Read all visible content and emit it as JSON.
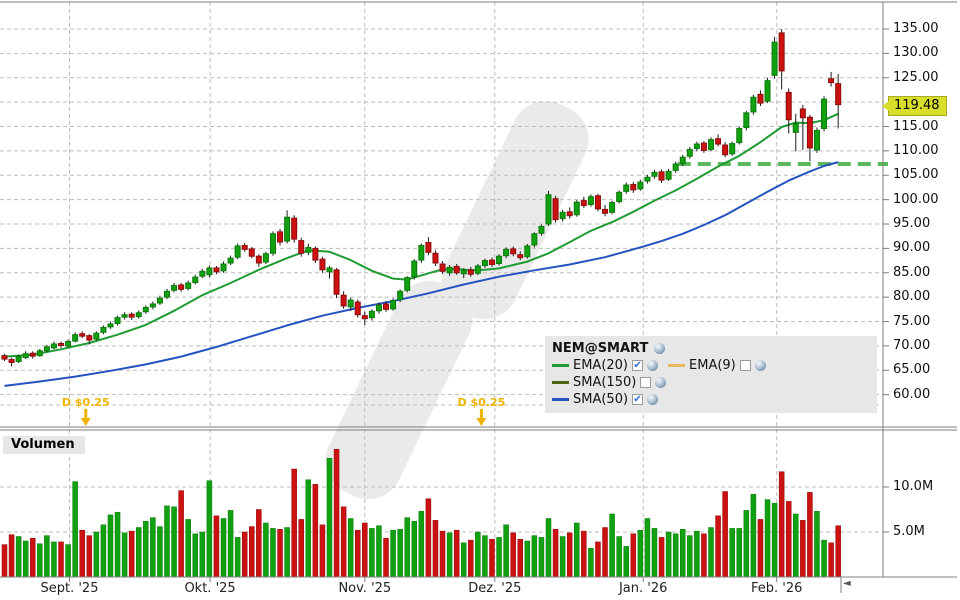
{
  "chart": {
    "symbol": "NEM@SMART",
    "current_price": "119.48",
    "volume_panel_title": "Volumen",
    "legend": {
      "symbol": "NEM@SMART",
      "items": [
        {
          "label": "EMA(20)",
          "color": "#1e9b32",
          "checked": true
        },
        {
          "label": "EMA(9)",
          "color": "#e6b95e",
          "checked": false
        },
        {
          "label": "SMA(150)",
          "color": "#47660e",
          "checked": false
        },
        {
          "label": "SMA(50)",
          "color": "#2553c0",
          "checked": true
        }
      ]
    }
  },
  "colors": {
    "up": "#10a010",
    "up_stroke": "#0a7a0a",
    "down": "#cc1111",
    "down_stroke": "#8e0c0c",
    "wick": "#1a1a1a",
    "grid": "#bdbdbd",
    "border": "#7f7f7f",
    "ema20": "#1e9b32",
    "sma50": "#2553c0",
    "support": "#5cb85c",
    "dividend": "#efb400",
    "watermark": "#eaeaea",
    "tag_bg": "#d8dc2b"
  },
  "chart_data": {
    "type": "candlestick",
    "symbol": "NEM@SMART",
    "title": "NEM@SMART Tageschart mit Volumen",
    "last_price": 119.48,
    "price_axis": {
      "min": 60,
      "max": 135,
      "tick_step": 5,
      "ticks": [
        {
          "value": 135,
          "label": "135.00"
        },
        {
          "value": 130,
          "label": "130.00"
        },
        {
          "value": 125,
          "label": "125.00"
        },
        {
          "value": 115,
          "label": "115.00"
        },
        {
          "value": 110,
          "label": "110.00"
        },
        {
          "value": 105,
          "label": "105.00"
        },
        {
          "value": 100,
          "label": "100.00"
        },
        {
          "value": 95,
          "label": "95.00"
        },
        {
          "value": 90,
          "label": "90.00"
        },
        {
          "value": 85,
          "label": "85.00"
        },
        {
          "value": 80,
          "label": "80.00"
        },
        {
          "value": 75,
          "label": "75.00"
        },
        {
          "value": 70,
          "label": "70.00"
        },
        {
          "value": 65,
          "label": "65.00"
        },
        {
          "value": 60,
          "label": "60.00"
        }
      ],
      "current_price_tag": {
        "value": 119.48,
        "label": "119.48"
      }
    },
    "volume_axis": {
      "ticks": [
        {
          "value": 10,
          "label": "10.0M"
        },
        {
          "value": 5,
          "label": "5.0M"
        }
      ]
    },
    "x_axis": {
      "months": [
        {
          "label": "Sept. '25",
          "i": 9.2
        },
        {
          "label": "Okt. '25",
          "i": 29.1
        },
        {
          "label": "Nov. '25",
          "i": 51.0
        },
        {
          "label": "Dez. '25",
          "i": 69.4
        },
        {
          "label": "Jan. '26",
          "i": 90.4
        },
        {
          "label": "Feb. '26",
          "i": 109.3
        }
      ]
    },
    "dividends": [
      {
        "label": "D $0.25",
        "i": 11.5
      },
      {
        "label": "D $0.25",
        "i": 67.5
      }
    ],
    "candles": [
      [
        68.0,
        68.4,
        66.9,
        67.3
      ],
      [
        67.2,
        67.6,
        65.8,
        66.6
      ],
      [
        66.8,
        68.2,
        66.5,
        67.8
      ],
      [
        67.6,
        68.9,
        67.3,
        68.4
      ],
      [
        68.5,
        68.9,
        67.4,
        67.9
      ],
      [
        68.0,
        69.4,
        67.8,
        69.0
      ],
      [
        69.0,
        70.2,
        68.7,
        69.8
      ],
      [
        69.6,
        70.9,
        69.3,
        70.4
      ],
      [
        70.5,
        70.9,
        69.6,
        70.1
      ],
      [
        70.0,
        71.3,
        69.7,
        70.9
      ],
      [
        71.0,
        72.8,
        70.7,
        72.3
      ],
      [
        72.5,
        73.0,
        71.6,
        72.0
      ],
      [
        72.1,
        72.4,
        70.3,
        71.2
      ],
      [
        71.4,
        73.0,
        71.1,
        72.6
      ],
      [
        72.8,
        74.2,
        72.4,
        73.8
      ],
      [
        73.9,
        75.0,
        73.5,
        74.5
      ],
      [
        74.6,
        76.2,
        74.2,
        75.8
      ],
      [
        75.9,
        76.9,
        75.4,
        76.4
      ],
      [
        76.5,
        76.9,
        75.3,
        75.9
      ],
      [
        76.0,
        77.3,
        75.6,
        76.8
      ],
      [
        77.0,
        78.3,
        76.6,
        77.9
      ],
      [
        78.0,
        79.1,
        77.5,
        78.6
      ],
      [
        78.8,
        80.3,
        78.4,
        79.8
      ],
      [
        80.0,
        81.7,
        79.6,
        81.2
      ],
      [
        81.4,
        82.9,
        81.0,
        82.4
      ],
      [
        82.5,
        82.9,
        81.1,
        81.6
      ],
      [
        81.8,
        83.4,
        81.4,
        82.9
      ],
      [
        83.0,
        84.6,
        82.6,
        84.1
      ],
      [
        84.3,
        85.8,
        83.9,
        85.3
      ],
      [
        84.6,
        86.5,
        84.1,
        86.0
      ],
      [
        86.0,
        86.4,
        84.7,
        85.2
      ],
      [
        85.4,
        87.3,
        85.0,
        86.8
      ],
      [
        87.0,
        88.5,
        86.6,
        88.0
      ],
      [
        88.2,
        91.0,
        87.8,
        90.5
      ],
      [
        90.6,
        91.1,
        89.3,
        89.8
      ],
      [
        89.9,
        90.3,
        88.0,
        88.4
      ],
      [
        88.4,
        88.8,
        86.2,
        87.0
      ],
      [
        87.2,
        89.3,
        86.8,
        88.9
      ],
      [
        89.0,
        93.5,
        88.5,
        93.0
      ],
      [
        93.4,
        94.0,
        90.6,
        91.3
      ],
      [
        91.5,
        97.8,
        91.0,
        96.4
      ],
      [
        96.2,
        96.8,
        91.2,
        91.9
      ],
      [
        91.6,
        92.2,
        88.3,
        89.0
      ],
      [
        89.2,
        91.0,
        88.6,
        90.2
      ],
      [
        90.0,
        90.4,
        87.0,
        87.6
      ],
      [
        87.8,
        88.3,
        85.0,
        85.6
      ],
      [
        85.2,
        86.4,
        83.8,
        86.0
      ],
      [
        85.6,
        86.0,
        79.8,
        80.6
      ],
      [
        80.4,
        81.2,
        77.6,
        78.2
      ],
      [
        78.0,
        79.9,
        77.2,
        79.4
      ],
      [
        79.0,
        79.5,
        75.8,
        76.4
      ],
      [
        76.2,
        77.0,
        74.3,
        75.6
      ],
      [
        75.8,
        77.5,
        75.2,
        77.1
      ],
      [
        77.2,
        78.9,
        76.6,
        78.4
      ],
      [
        78.6,
        79.2,
        77.0,
        77.5
      ],
      [
        77.6,
        79.8,
        77.2,
        79.3
      ],
      [
        79.5,
        81.6,
        79.0,
        81.2
      ],
      [
        81.4,
        84.3,
        81.0,
        84.0
      ],
      [
        84.2,
        87.8,
        83.6,
        87.4
      ],
      [
        87.6,
        91.0,
        87.0,
        90.6
      ],
      [
        91.2,
        92.3,
        88.6,
        89.2
      ],
      [
        89.0,
        89.6,
        86.4,
        87.0
      ],
      [
        86.8,
        87.4,
        84.8,
        85.3
      ],
      [
        85.0,
        86.6,
        84.4,
        86.1
      ],
      [
        86.3,
        86.8,
        84.6,
        85.0
      ],
      [
        84.8,
        85.9,
        83.9,
        85.5
      ],
      [
        85.6,
        86.2,
        84.2,
        84.7
      ],
      [
        84.9,
        86.8,
        84.5,
        86.4
      ],
      [
        86.5,
        87.9,
        86.0,
        87.5
      ],
      [
        87.6,
        88.1,
        86.2,
        86.7
      ],
      [
        86.9,
        88.8,
        86.5,
        88.4
      ],
      [
        88.5,
        90.2,
        88.0,
        89.8
      ],
      [
        89.9,
        90.4,
        88.4,
        88.9
      ],
      [
        88.7,
        89.4,
        87.6,
        88.1
      ],
      [
        88.3,
        90.9,
        87.9,
        90.5
      ],
      [
        90.7,
        93.3,
        90.2,
        93.0
      ],
      [
        93.1,
        94.9,
        92.6,
        94.5
      ],
      [
        95.0,
        101.8,
        94.6,
        101.0
      ],
      [
        100.2,
        100.8,
        95.3,
        95.9
      ],
      [
        96.1,
        97.9,
        95.5,
        97.4
      ],
      [
        97.5,
        98.4,
        96.1,
        96.7
      ],
      [
        96.9,
        99.9,
        96.5,
        99.5
      ],
      [
        99.8,
        100.6,
        98.3,
        98.8
      ],
      [
        99.0,
        101.1,
        98.6,
        100.6
      ],
      [
        100.8,
        101.2,
        97.6,
        98.1
      ],
      [
        98.0,
        98.9,
        96.6,
        97.2
      ],
      [
        97.4,
        99.8,
        97.0,
        99.4
      ],
      [
        99.6,
        101.9,
        99.2,
        101.5
      ],
      [
        101.7,
        103.5,
        101.2,
        103.0
      ],
      [
        103.1,
        103.6,
        101.4,
        102.0
      ],
      [
        102.2,
        104.1,
        101.8,
        103.6
      ],
      [
        103.8,
        105.1,
        103.3,
        104.6
      ],
      [
        104.8,
        106.1,
        104.3,
        105.6
      ],
      [
        105.7,
        106.2,
        103.4,
        104.0
      ],
      [
        104.2,
        106.3,
        103.8,
        105.8
      ],
      [
        106.0,
        107.8,
        105.5,
        107.3
      ],
      [
        107.4,
        109.2,
        106.9,
        108.7
      ],
      [
        108.9,
        110.8,
        108.4,
        110.3
      ],
      [
        110.5,
        111.9,
        109.9,
        111.4
      ],
      [
        111.6,
        112.0,
        109.6,
        110.1
      ],
      [
        110.3,
        112.8,
        109.9,
        112.3
      ],
      [
        112.5,
        113.4,
        110.9,
        111.4
      ],
      [
        111.2,
        111.8,
        108.7,
        109.2
      ],
      [
        109.4,
        111.9,
        109.0,
        111.5
      ],
      [
        111.7,
        115.0,
        111.3,
        114.6
      ],
      [
        114.8,
        118.2,
        114.2,
        117.8
      ],
      [
        118.0,
        121.5,
        117.4,
        121.0
      ],
      [
        121.6,
        122.4,
        119.2,
        119.8
      ],
      [
        120.2,
        125.0,
        119.8,
        124.4
      ],
      [
        125.5,
        133.4,
        124.8,
        132.3
      ],
      [
        134.2,
        135.0,
        122.6,
        126.4
      ],
      [
        122.0,
        122.8,
        113.6,
        116.4
      ],
      [
        113.8,
        117.6,
        109.9,
        115.6
      ],
      [
        118.6,
        119.4,
        110.2,
        116.8
      ],
      [
        116.9,
        117.4,
        107.9,
        110.6
      ],
      [
        110.2,
        114.8,
        109.6,
        114.2
      ],
      [
        114.6,
        121.2,
        114.0,
        120.6
      ],
      [
        124.8,
        126.2,
        123.2,
        124.0
      ],
      [
        123.8,
        125.8,
        114.6,
        119.48
      ]
    ],
    "volumes_millions": [
      3.6,
      4.7,
      4.5,
      4.0,
      4.3,
      3.7,
      4.6,
      3.9,
      3.9,
      3.6,
      10.6,
      5.2,
      4.6,
      5.0,
      5.8,
      6.9,
      7.2,
      4.9,
      5.1,
      5.5,
      6.2,
      6.6,
      5.6,
      7.9,
      7.8,
      9.6,
      6.4,
      4.8,
      5.0,
      10.7,
      6.8,
      6.5,
      7.4,
      4.4,
      5.0,
      5.6,
      7.5,
      6.0,
      5.4,
      5.3,
      5.5,
      12.0,
      6.4,
      10.8,
      10.3,
      5.8,
      13.2,
      14.2,
      7.8,
      6.5,
      5.2,
      6.0,
      5.4,
      5.7,
      4.3,
      5.2,
      5.3,
      6.6,
      6.2,
      7.3,
      8.7,
      6.3,
      5.1,
      4.9,
      5.2,
      3.8,
      4.1,
      5.0,
      4.6,
      4.2,
      4.4,
      5.8,
      4.9,
      4.2,
      4.0,
      4.6,
      4.4,
      6.5,
      5.3,
      4.5,
      4.9,
      6.0,
      5.1,
      3.2,
      3.9,
      5.5,
      7.0,
      4.5,
      3.4,
      4.8,
      5.2,
      6.5,
      5.4,
      4.4,
      5.0,
      4.8,
      5.3,
      4.6,
      5.1,
      4.8,
      5.5,
      6.8,
      9.5,
      5.4,
      5.4,
      7.4,
      9.2,
      6.4,
      8.6,
      8.2,
      11.7,
      8.4,
      7.0,
      6.3,
      9.4,
      7.3,
      4.1,
      3.8,
      5.7
    ],
    "indicators": {
      "ema20": {
        "name": "EMA(20)",
        "color": "#1e9b32",
        "points": [
          [
            0,
            67.8
          ],
          [
            4,
            68.2
          ],
          [
            8,
            69.3
          ],
          [
            12,
            70.6
          ],
          [
            16,
            72.3
          ],
          [
            20,
            74.3
          ],
          [
            24,
            77.2
          ],
          [
            28,
            80.4
          ],
          [
            32,
            82.9
          ],
          [
            36,
            85.6
          ],
          [
            40,
            88.0
          ],
          [
            43,
            89.6
          ],
          [
            46,
            89.3
          ],
          [
            49,
            87.6
          ],
          [
            52,
            85.4
          ],
          [
            55,
            83.8
          ],
          [
            57,
            83.6
          ],
          [
            60,
            84.9
          ],
          [
            62,
            85.7
          ],
          [
            64,
            85.8
          ],
          [
            66,
            85.5
          ],
          [
            68,
            85.6
          ],
          [
            70,
            85.9
          ],
          [
            72,
            86.6
          ],
          [
            74,
            87.3
          ],
          [
            77,
            89.0
          ],
          [
            80,
            91.3
          ],
          [
            83,
            93.6
          ],
          [
            86,
            95.4
          ],
          [
            89,
            97.5
          ],
          [
            92,
            99.8
          ],
          [
            95,
            101.9
          ],
          [
            98,
            104.3
          ],
          [
            101,
            106.8
          ],
          [
            104,
            109.0
          ],
          [
            107,
            111.8
          ],
          [
            110,
            114.9
          ],
          [
            112,
            115.8
          ],
          [
            114,
            115.7
          ],
          [
            116,
            116.3
          ],
          [
            118,
            117.6
          ]
        ]
      },
      "sma50": {
        "name": "SMA(50)",
        "color": "#2553c0",
        "points": [
          [
            0,
            61.8
          ],
          [
            5,
            62.7
          ],
          [
            10,
            63.7
          ],
          [
            15,
            64.9
          ],
          [
            20,
            66.2
          ],
          [
            25,
            67.8
          ],
          [
            30,
            69.8
          ],
          [
            35,
            72.0
          ],
          [
            40,
            74.2
          ],
          [
            45,
            76.2
          ],
          [
            50,
            77.8
          ],
          [
            55,
            79.2
          ],
          [
            60,
            80.8
          ],
          [
            65,
            82.6
          ],
          [
            70,
            84.2
          ],
          [
            75,
            85.5
          ],
          [
            80,
            86.7
          ],
          [
            85,
            88.2
          ],
          [
            90,
            90.2
          ],
          [
            93,
            91.5
          ],
          [
            96,
            93.0
          ],
          [
            99,
            94.8
          ],
          [
            102,
            96.8
          ],
          [
            105,
            99.2
          ],
          [
            108,
            101.6
          ],
          [
            111,
            103.9
          ],
          [
            114,
            105.8
          ],
          [
            116,
            106.9
          ],
          [
            118,
            107.7
          ]
        ]
      },
      "support_line": {
        "price": 107.3,
        "from_i": 95.3,
        "style": "dashed",
        "color": "#5cb85c"
      }
    }
  }
}
